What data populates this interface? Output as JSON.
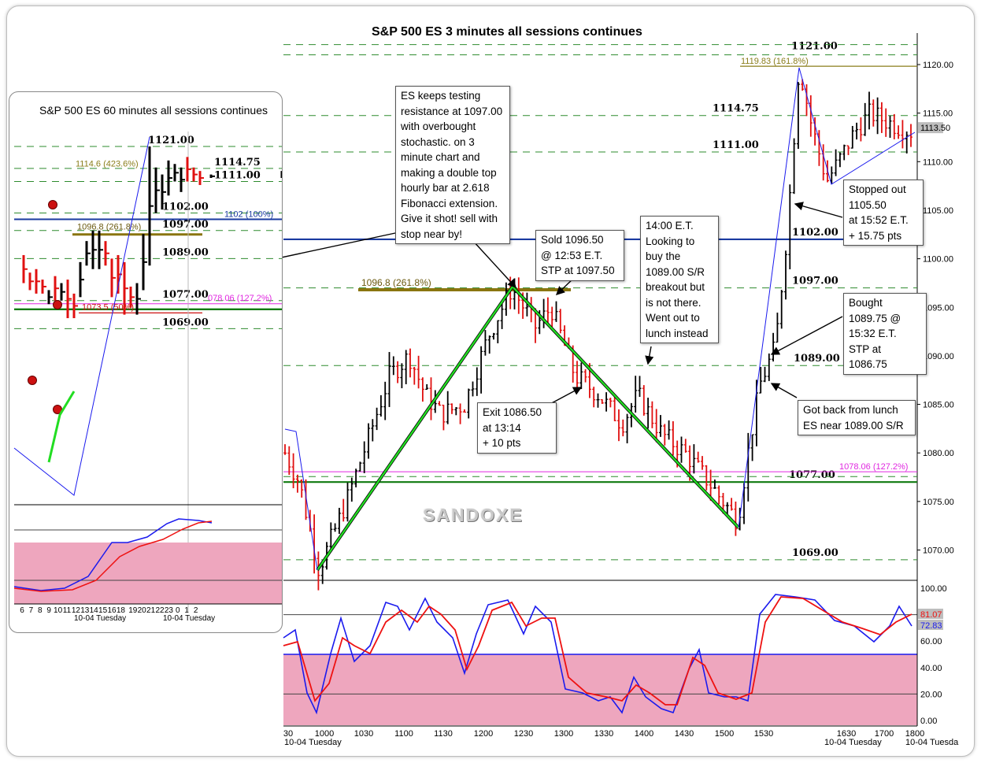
{
  "main_chart": {
    "title": "S&P 500 ES 3 minutes all sessions continues",
    "watermark": "SANDOXE",
    "price_axis": {
      "ticks": [
        "1120.00",
        "1115.00",
        "1110.00",
        "1105.00",
        "1100.00",
        "1095.00",
        "1090.00",
        "1085.00",
        "1080.00",
        "1075.00",
        "1070.00"
      ],
      "tick_values": [
        1120,
        1115,
        1110,
        1105,
        1100,
        1095,
        1090,
        1085,
        1080,
        1075,
        1070
      ],
      "current_price": "1113.50",
      "ylim": [
        1066,
        1124
      ]
    },
    "time_axis": {
      "ticks": [
        "30",
        "1000",
        "1030",
        "1100",
        "1130",
        "1200",
        "1230",
        "1300",
        "1330",
        "1400",
        "1430",
        "1500",
        "1530",
        "1630",
        "1700",
        "1800"
      ],
      "date_labels": [
        "10-04 Tuesday",
        "10-04 Tuesday",
        "10-04 Tuesda"
      ]
    },
    "levels": [
      {
        "label": "1121.00",
        "value": 1121
      },
      {
        "label": "1114.75",
        "value": 1114.75
      },
      {
        "label": "1111.00",
        "value": 1111
      },
      {
        "label": "1102.00",
        "value": 1102
      },
      {
        "label": "1097.00",
        "value": 1097
      },
      {
        "label": "1089.00",
        "value": 1089
      },
      {
        "label": "1077.00",
        "value": 1077
      },
      {
        "label": "1069.00",
        "value": 1069
      }
    ],
    "fib_labels": [
      {
        "label": "1119.83 (161.8%)",
        "value": 1119.83,
        "color": "#8a7d1a"
      },
      {
        "label": "1096.8 (261.8%)",
        "value": 1096.8,
        "color": "#6b5a10"
      },
      {
        "label": "1078.06 (127.2%)",
        "value": 1078.06,
        "color": "#e028e0"
      }
    ],
    "stoch_axis": {
      "ticks": [
        "100.00",
        "80.00",
        "60.00",
        "40.00",
        "20.00",
        "0.00"
      ],
      "values": [
        100,
        80,
        60,
        40,
        20,
        0
      ],
      "readout_red": "81.07",
      "readout_blue": "72.83"
    },
    "annotations": {
      "main_note": "ES keeps testing\nresistance at 1097.00\nwith overbought\nstochastic. on 3\nminute chart and\nmaking a double top\nhourly bar at 2.618\nFibonacci extension.\nGive it shot! sell with\nstop near by!",
      "sold": "Sold 1096.50\n@ 12:53 E.T.\nSTP at 1097.50",
      "lunch": "14:00 E.T.\nLooking to\nbuy the\n1089.00 S/R\nbreakout but\nis not there.\nWent out to\nlunch instead",
      "exit": "Exit 1086.50\nat 13:14\n+ 10 pts",
      "stopped": "Stopped out\n1105.50\nat 15:52 E.T.\n+ 15.75 pts",
      "bought": "Bought\n1089.75  @\n15:32 E.T.\nSTP at 1086.75",
      "back": "Got back from lunch\nES near 1089.00 S/R"
    }
  },
  "inset_chart": {
    "title": "S&P 500 ES 60 minutes all sessions continues",
    "levels": [
      {
        "label": "1121.00"
      },
      {
        "label": "1114.75"
      },
      {
        "label": "1111.00"
      },
      {
        "label": "1102.00"
      },
      {
        "label": "1097.00"
      },
      {
        "label": "1089.00"
      },
      {
        "label": "1077.00"
      },
      {
        "label": "1069.00"
      }
    ],
    "fib_labels": [
      {
        "label": "1114.6 (423.6%)",
        "color": "#8a7d1a"
      },
      {
        "label": "1102 (100%)",
        "color": "#1a3aa0"
      },
      {
        "label": "1096.8 (261.8%)",
        "color": "#6b5a10"
      },
      {
        "label": "078.06 (127.2%)",
        "color": "#e028e0"
      },
      {
        "label": "1073.5 (50%)",
        "color": "#cc1111"
      }
    ],
    "time_ticks": [
      "6",
      "7",
      "8",
      "9",
      "10",
      "11",
      "12",
      "13",
      "14",
      "15",
      "16",
      "18",
      "19",
      "20",
      "21",
      "22",
      "23",
      "0",
      "1",
      "2"
    ],
    "date_labels": [
      "10-04 Tuesday",
      "10-04 Tuesday"
    ]
  },
  "colors": {
    "up": "#000000",
    "down": "#e01010",
    "level": "#2e8b2e",
    "blue_line": "#1a3aa0",
    "pink": "#eea6be",
    "stoch_k": "#1a1aee",
    "stoch_d": "#ee1111",
    "trend": "#22dd22"
  }
}
